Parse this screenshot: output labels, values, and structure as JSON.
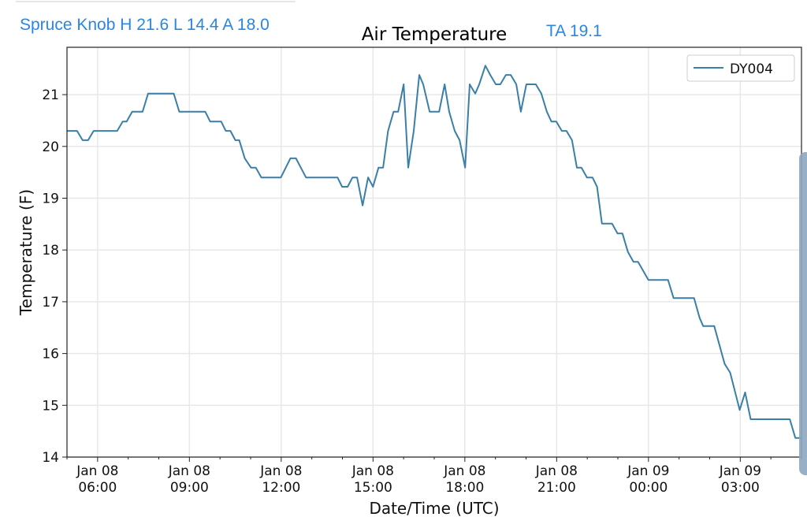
{
  "header": {
    "station_summary": "Spruce Knob H 21.6 L 14.4 A 18.0",
    "ta_summary": "TA 19.1"
  },
  "chart_data": {
    "type": "line",
    "title": "Air Temperature",
    "xlabel": "Date/Time (UTC)",
    "ylabel": "Temperature (F)",
    "x_units": "hours since Jan 08 00:00 UTC",
    "xlim": [
      5.0,
      29.0
    ],
    "ylim": [
      14,
      21.85
    ],
    "grid": true,
    "legend_position": "top-right",
    "x_ticks": [
      {
        "value": 6,
        "label": [
          "Jan 08",
          "06:00"
        ]
      },
      {
        "value": 9,
        "label": [
          "Jan 08",
          "09:00"
        ]
      },
      {
        "value": 12,
        "label": [
          "Jan 08",
          "12:00"
        ]
      },
      {
        "value": 15,
        "label": [
          "Jan 08",
          "15:00"
        ]
      },
      {
        "value": 18,
        "label": [
          "Jan 08",
          "18:00"
        ]
      },
      {
        "value": 21,
        "label": [
          "Jan 08",
          "21:00"
        ]
      },
      {
        "value": 24,
        "label": [
          "Jan 09",
          "00:00"
        ]
      },
      {
        "value": 27,
        "label": [
          "Jan 09",
          "03:00"
        ]
      }
    ],
    "y_ticks": [
      14,
      15,
      16,
      17,
      18,
      19,
      20,
      21
    ],
    "series": [
      {
        "name": "DY004",
        "color": "#3a7fa8",
        "points": [
          [
            5.0,
            20.3
          ],
          [
            5.33,
            20.3
          ],
          [
            5.51,
            20.12
          ],
          [
            5.69,
            20.12
          ],
          [
            5.87,
            20.3
          ],
          [
            6.64,
            20.3
          ],
          [
            6.82,
            20.48
          ],
          [
            6.95,
            20.48
          ],
          [
            7.13,
            20.67
          ],
          [
            7.47,
            20.67
          ],
          [
            7.65,
            21.02
          ],
          [
            8.49,
            21.02
          ],
          [
            8.67,
            20.67
          ],
          [
            9.52,
            20.67
          ],
          [
            9.68,
            20.48
          ],
          [
            10.04,
            20.48
          ],
          [
            10.19,
            20.3
          ],
          [
            10.34,
            20.3
          ],
          [
            10.5,
            20.12
          ],
          [
            10.63,
            20.12
          ],
          [
            10.81,
            19.77
          ],
          [
            11.01,
            19.59
          ],
          [
            11.17,
            19.59
          ],
          [
            11.35,
            19.4
          ],
          [
            11.99,
            19.4
          ],
          [
            12.3,
            19.77
          ],
          [
            12.48,
            19.77
          ],
          [
            12.81,
            19.4
          ],
          [
            13.84,
            19.4
          ],
          [
            13.99,
            19.22
          ],
          [
            14.17,
            19.22
          ],
          [
            14.33,
            19.4
          ],
          [
            14.48,
            19.4
          ],
          [
            14.66,
            18.86
          ],
          [
            14.84,
            19.4
          ],
          [
            15.0,
            19.22
          ],
          [
            15.18,
            19.59
          ],
          [
            15.33,
            19.59
          ],
          [
            15.49,
            20.3
          ],
          [
            15.67,
            20.67
          ],
          [
            15.82,
            20.67
          ],
          [
            16.0,
            21.2
          ],
          [
            16.15,
            19.59
          ],
          [
            16.33,
            20.3
          ],
          [
            16.51,
            21.38
          ],
          [
            16.64,
            21.2
          ],
          [
            16.85,
            20.67
          ],
          [
            17.16,
            20.67
          ],
          [
            17.34,
            21.2
          ],
          [
            17.49,
            20.67
          ],
          [
            17.67,
            20.3
          ],
          [
            17.83,
            20.12
          ],
          [
            18.01,
            19.59
          ],
          [
            18.16,
            21.2
          ],
          [
            18.34,
            21.02
          ],
          [
            18.47,
            21.2
          ],
          [
            18.67,
            21.56
          ],
          [
            18.83,
            21.38
          ],
          [
            19.01,
            21.2
          ],
          [
            19.16,
            21.2
          ],
          [
            19.34,
            21.38
          ],
          [
            19.5,
            21.38
          ],
          [
            19.68,
            21.2
          ],
          [
            19.83,
            20.67
          ],
          [
            20.01,
            21.2
          ],
          [
            20.32,
            21.2
          ],
          [
            20.5,
            21.02
          ],
          [
            20.68,
            20.67
          ],
          [
            20.83,
            20.48
          ],
          [
            20.99,
            20.48
          ],
          [
            21.17,
            20.3
          ],
          [
            21.32,
            20.3
          ],
          [
            21.5,
            20.12
          ],
          [
            21.66,
            19.59
          ],
          [
            21.81,
            19.59
          ],
          [
            21.99,
            19.4
          ],
          [
            22.17,
            19.4
          ],
          [
            22.32,
            19.22
          ],
          [
            22.48,
            18.51
          ],
          [
            22.81,
            18.51
          ],
          [
            22.99,
            18.32
          ],
          [
            23.15,
            18.32
          ],
          [
            23.33,
            17.96
          ],
          [
            23.51,
            17.77
          ],
          [
            23.66,
            17.77
          ],
          [
            24.0,
            17.42
          ],
          [
            24.64,
            17.42
          ],
          [
            24.82,
            17.07
          ],
          [
            25.49,
            17.07
          ],
          [
            25.67,
            16.69
          ],
          [
            25.79,
            16.53
          ],
          [
            26.15,
            16.53
          ],
          [
            26.49,
            15.8
          ],
          [
            26.67,
            15.63
          ],
          [
            26.98,
            14.91
          ],
          [
            27.16,
            15.25
          ],
          [
            27.34,
            14.73
          ],
          [
            28.62,
            14.73
          ],
          [
            28.8,
            14.37
          ],
          [
            29.0,
            14.37
          ]
        ]
      }
    ]
  }
}
